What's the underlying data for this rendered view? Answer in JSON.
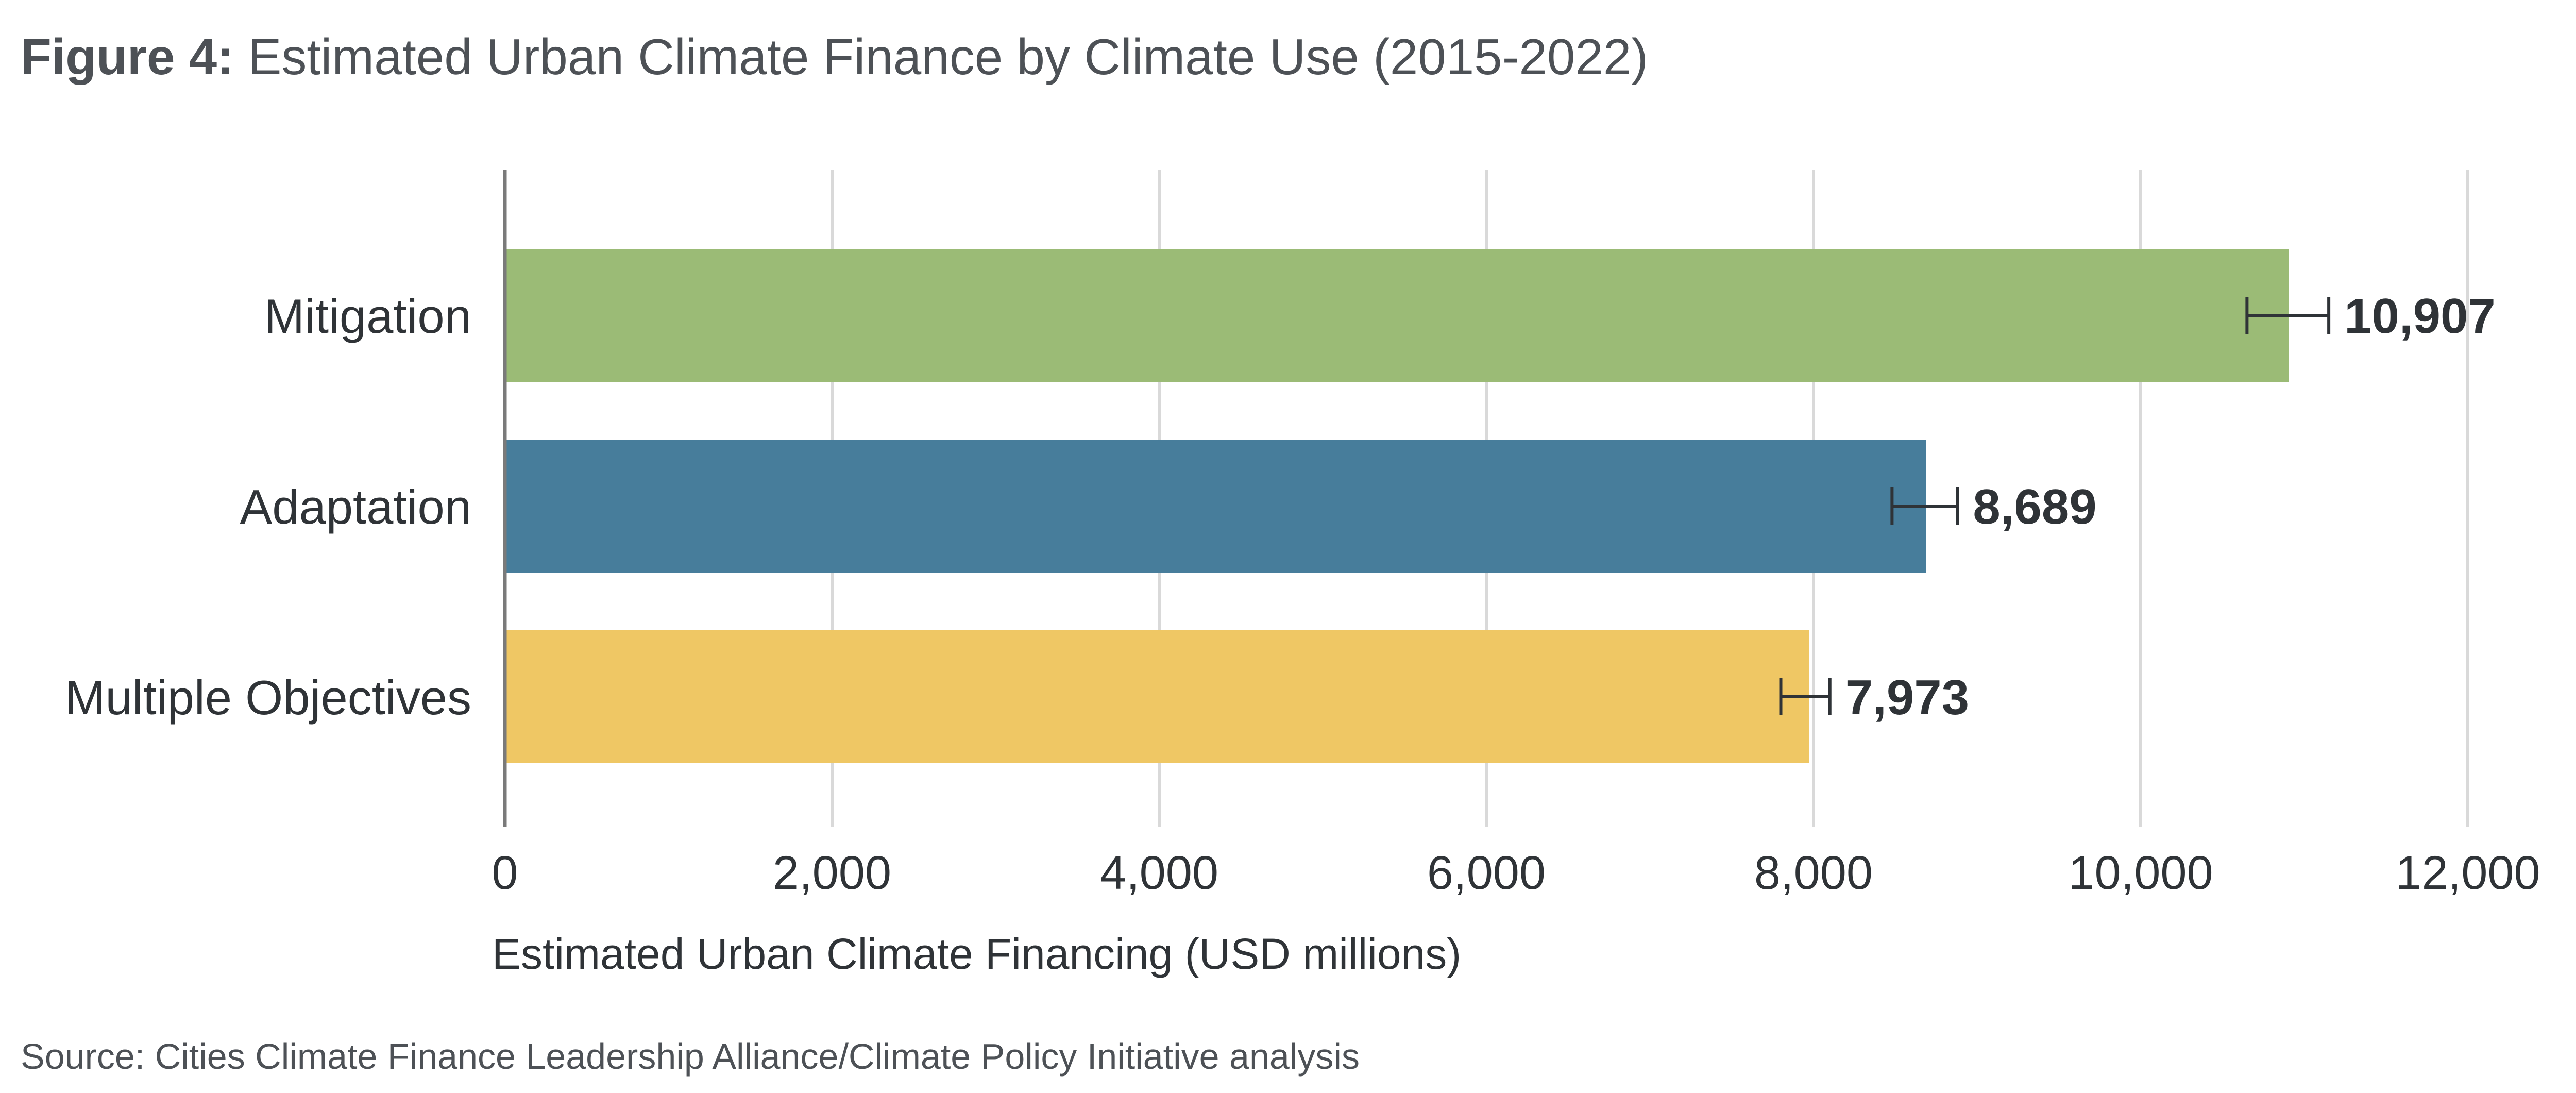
{
  "figure": {
    "label": "Figure 4:",
    "title": "Estimated Urban Climate Finance by Climate Use (2015-2022)",
    "source": "Source: Cities Climate Finance Leadership Alliance/Climate Policy Initiative analysis"
  },
  "chart_data": {
    "type": "bar",
    "orientation": "horizontal",
    "title": "Estimated Urban Climate Finance by Climate Use (2015-2022)",
    "xlabel": "Estimated Urban Climate Financing (USD millions)",
    "ylabel": "",
    "categories": [
      "Mitigation",
      "Adaptation",
      "Multiple Objectives"
    ],
    "values": [
      10907,
      8689,
      7973
    ],
    "value_labels": [
      "10,907",
      "8,689",
      "7,973"
    ],
    "error_low": [
      10650,
      8480,
      7800
    ],
    "error_high": [
      11150,
      8880,
      8100
    ],
    "colors": [
      "#9bbb76",
      "#477d9b",
      "#efc764"
    ],
    "xlim": [
      0,
      12000
    ],
    "xticks": [
      0,
      2000,
      4000,
      6000,
      8000,
      10000,
      12000
    ],
    "xtick_labels": [
      "0",
      "2,000",
      "4,000",
      "6,000",
      "8,000",
      "10,000",
      "12,000"
    ],
    "grid": "vertical",
    "legend": "none"
  }
}
